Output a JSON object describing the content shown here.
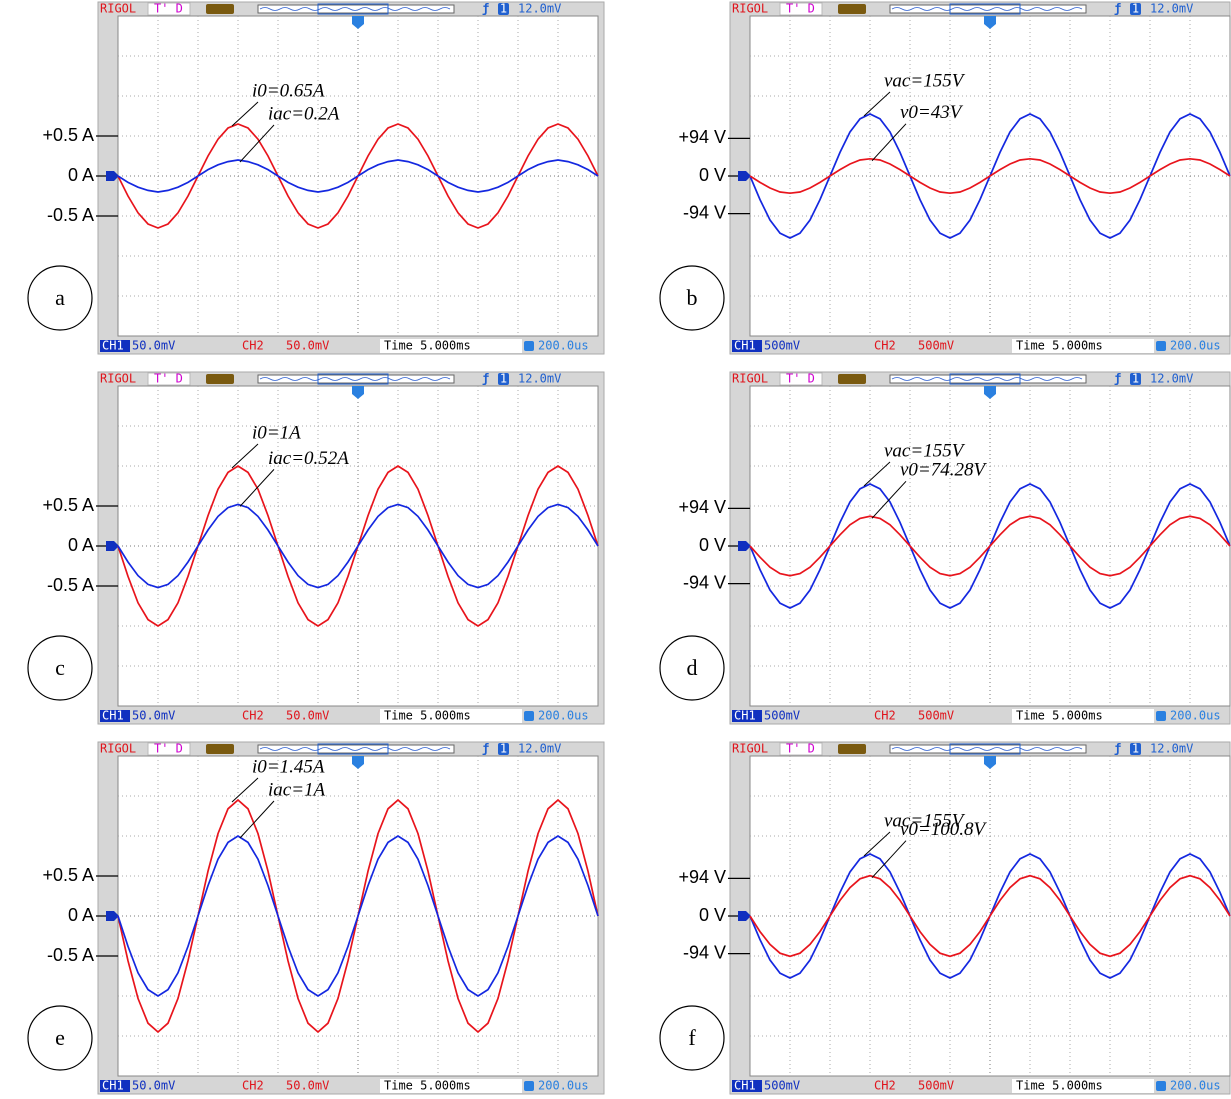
{
  "chart_data": [
    {
      "type": "line",
      "label": "a",
      "header": {
        "brand": "RIGOL",
        "mode": "T' D",
        "trigger_channel": "1",
        "trigger_level": "12.0mV"
      },
      "footer": {
        "ch1": "CH1",
        "ch1_scale": "50.0mV",
        "ch2": "CH2",
        "ch2_scale": "50.0mV",
        "time": "Time 5.000ms",
        "offset": "200.0us"
      },
      "annotations": [
        "i0=0.65A",
        "iac=0.2A"
      ],
      "ylim": [
        -2,
        2
      ],
      "yticks": [
        {
          "value": 0.5,
          "label": "+0.5 A"
        },
        {
          "value": 0,
          "label": "0 A"
        },
        {
          "value": -0.5,
          "label": "-0.5 A"
        }
      ],
      "series": [
        {
          "color": "#e8141c",
          "values": [
            0,
            -0.25,
            -0.46,
            -0.6,
            -0.65,
            -0.6,
            -0.46,
            -0.25,
            0,
            0.25,
            0.46,
            0.6,
            0.65,
            0.6,
            0.46,
            0.25,
            0,
            -0.25,
            -0.46,
            -0.6,
            -0.65,
            -0.6,
            -0.46,
            -0.25,
            0,
            0.25,
            0.46,
            0.6,
            0.65,
            0.6,
            0.46,
            0.25,
            0,
            -0.25,
            -0.46,
            -0.6,
            -0.65,
            -0.6,
            -0.46,
            -0.25,
            0,
            0.25,
            0.46,
            0.6,
            0.65,
            0.6,
            0.46,
            0.25,
            0
          ]
        },
        {
          "color": "#1428e0",
          "values": [
            0,
            -0.08,
            -0.14,
            -0.18,
            -0.2,
            -0.18,
            -0.14,
            -0.08,
            0,
            0.08,
            0.14,
            0.18,
            0.2,
            0.18,
            0.14,
            0.08,
            0,
            -0.08,
            -0.14,
            -0.18,
            -0.2,
            -0.18,
            -0.14,
            -0.08,
            0,
            0.08,
            0.14,
            0.18,
            0.2,
            0.18,
            0.14,
            0.08,
            0,
            -0.08,
            -0.14,
            -0.18,
            -0.2,
            -0.18,
            -0.14,
            -0.08,
            0,
            0.08,
            0.14,
            0.18,
            0.2,
            0.18,
            0.14,
            0.08,
            0
          ]
        }
      ]
    },
    {
      "type": "line",
      "label": "b",
      "header": {
        "brand": "RIGOL",
        "mode": "T' D",
        "trigger_channel": "1",
        "trigger_level": "12.0mV"
      },
      "footer": {
        "ch1": "CH1",
        "ch1_scale": "500mV",
        "ch2": "CH2",
        "ch2_scale": "500mV",
        "time": "Time 5.000ms",
        "offset": "200.0us"
      },
      "annotations": [
        "vac=155V",
        "v0=43V"
      ],
      "ylim": [
        -400,
        400
      ],
      "yticks": [
        {
          "value": 94,
          "label": "+94 V"
        },
        {
          "value": 0,
          "label": "0 V"
        },
        {
          "value": -94,
          "label": "-94 V"
        }
      ],
      "series": [
        {
          "color": "#1428e0",
          "values": [
            0,
            -59,
            -110,
            -143,
            -155,
            -143,
            -110,
            -59,
            0,
            59,
            110,
            143,
            155,
            143,
            110,
            59,
            0,
            -59,
            -110,
            -143,
            -155,
            -143,
            -110,
            -59,
            0,
            59,
            110,
            143,
            155,
            143,
            110,
            59,
            0,
            -59,
            -110,
            -143,
            -155,
            -143,
            -110,
            -59,
            0,
            59,
            110,
            143,
            155,
            143,
            110,
            59,
            0
          ]
        },
        {
          "color": "#e8141c",
          "values": [
            0,
            -16,
            -30,
            -40,
            -43,
            -40,
            -30,
            -16,
            0,
            16,
            30,
            40,
            43,
            40,
            30,
            16,
            0,
            -16,
            -30,
            -40,
            -43,
            -40,
            -30,
            -16,
            0,
            16,
            30,
            40,
            43,
            40,
            30,
            16,
            0,
            -16,
            -30,
            -40,
            -43,
            -40,
            -30,
            -16,
            0,
            16,
            30,
            40,
            43,
            40,
            30,
            16,
            0
          ]
        }
      ]
    },
    {
      "type": "line",
      "label": "c",
      "header": {
        "brand": "RIGOL",
        "mode": "T' D",
        "trigger_channel": "1",
        "trigger_level": "12.0mV"
      },
      "footer": {
        "ch1": "CH1",
        "ch1_scale": "50.0mV",
        "ch2": "CH2",
        "ch2_scale": "50.0mV",
        "time": "Time 5.000ms",
        "offset": "200.0us"
      },
      "annotations": [
        "i0=1A",
        "iac=0.52A"
      ],
      "ylim": [
        -2,
        2
      ],
      "yticks": [
        {
          "value": 0.5,
          "label": "+0.5 A"
        },
        {
          "value": 0,
          "label": "0 A"
        },
        {
          "value": -0.5,
          "label": "-0.5 A"
        }
      ],
      "series": [
        {
          "color": "#e8141c",
          "values": [
            0,
            -0.38,
            -0.71,
            -0.92,
            -1,
            -0.92,
            -0.71,
            -0.38,
            0,
            0.38,
            0.71,
            0.92,
            1,
            0.92,
            0.71,
            0.38,
            0,
            -0.38,
            -0.71,
            -0.92,
            -1,
            -0.92,
            -0.71,
            -0.38,
            0,
            0.38,
            0.71,
            0.92,
            1,
            0.92,
            0.71,
            0.38,
            0,
            -0.38,
            -0.71,
            -0.92,
            -1,
            -0.92,
            -0.71,
            -0.38,
            0,
            0.38,
            0.71,
            0.92,
            1,
            0.92,
            0.71,
            0.38,
            0
          ]
        },
        {
          "color": "#1428e0",
          "values": [
            0,
            -0.2,
            -0.37,
            -0.48,
            -0.52,
            -0.48,
            -0.37,
            -0.2,
            0,
            0.2,
            0.37,
            0.48,
            0.52,
            0.48,
            0.37,
            0.2,
            0,
            -0.2,
            -0.37,
            -0.48,
            -0.52,
            -0.48,
            -0.37,
            -0.2,
            0,
            0.2,
            0.37,
            0.48,
            0.52,
            0.48,
            0.37,
            0.2,
            0,
            -0.2,
            -0.37,
            -0.48,
            -0.52,
            -0.48,
            -0.37,
            -0.2,
            0,
            0.2,
            0.37,
            0.48,
            0.52,
            0.48,
            0.37,
            0.2,
            0
          ]
        }
      ]
    },
    {
      "type": "line",
      "label": "d",
      "header": {
        "brand": "RIGOL",
        "mode": "T' D",
        "trigger_channel": "1",
        "trigger_level": "12.0mV"
      },
      "footer": {
        "ch1": "CH1",
        "ch1_scale": "500mV",
        "ch2": "CH2",
        "ch2_scale": "500mV",
        "time": "Time 5.000ms",
        "offset": "200.0us"
      },
      "annotations": [
        "vac=155V",
        "v0=74.28V"
      ],
      "ylim": [
        -400,
        400
      ],
      "yticks": [
        {
          "value": 94,
          "label": "+94 V"
        },
        {
          "value": 0,
          "label": "0 V"
        },
        {
          "value": -94,
          "label": "-94 V"
        }
      ],
      "series": [
        {
          "color": "#1428e0",
          "values": [
            0,
            -59,
            -110,
            -143,
            -155,
            -143,
            -110,
            -59,
            0,
            59,
            110,
            143,
            155,
            143,
            110,
            59,
            0,
            -59,
            -110,
            -143,
            -155,
            -143,
            -110,
            -59,
            0,
            59,
            110,
            143,
            155,
            143,
            110,
            59,
            0,
            -59,
            -110,
            -143,
            -155,
            -143,
            -110,
            -59,
            0,
            59,
            110,
            143,
            155,
            143,
            110,
            59,
            0
          ]
        },
        {
          "color": "#e8141c",
          "values": [
            0,
            -28,
            -53,
            -69,
            -74.28,
            -69,
            -53,
            -28,
            0,
            28,
            53,
            69,
            74.28,
            69,
            53,
            28,
            0,
            -28,
            -53,
            -69,
            -74.28,
            -69,
            -53,
            -28,
            0,
            28,
            53,
            69,
            74.28,
            69,
            53,
            28,
            0,
            -28,
            -53,
            -69,
            -74.28,
            -69,
            -53,
            -28,
            0,
            28,
            53,
            69,
            74.28,
            69,
            53,
            28,
            0
          ]
        }
      ]
    },
    {
      "type": "line",
      "label": "e",
      "header": {
        "brand": "RIGOL",
        "mode": "T' D",
        "trigger_channel": "1",
        "trigger_level": "12.0mV"
      },
      "footer": {
        "ch1": "CH1",
        "ch1_scale": "50.0mV",
        "ch2": "CH2",
        "ch2_scale": "50.0mV",
        "time": "Time 5.000ms",
        "offset": "200.0us"
      },
      "annotations": [
        "i0=1.45A",
        "iac=1A"
      ],
      "ylim": [
        -2,
        2
      ],
      "yticks": [
        {
          "value": 0.5,
          "label": "+0.5 A"
        },
        {
          "value": 0,
          "label": "0 A"
        },
        {
          "value": -0.5,
          "label": "-0.5 A"
        }
      ],
      "series": [
        {
          "color": "#e8141c",
          "values": [
            0,
            -0.56,
            -1.03,
            -1.34,
            -1.45,
            -1.34,
            -1.03,
            -0.56,
            0,
            0.56,
            1.03,
            1.34,
            1.45,
            1.34,
            1.03,
            0.56,
            0,
            -0.56,
            -1.03,
            -1.34,
            -1.45,
            -1.34,
            -1.03,
            -0.56,
            0,
            0.56,
            1.03,
            1.34,
            1.45,
            1.34,
            1.03,
            0.56,
            0,
            -0.56,
            -1.03,
            -1.34,
            -1.45,
            -1.34,
            -1.03,
            -0.56,
            0,
            0.56,
            1.03,
            1.34,
            1.45,
            1.34,
            1.03,
            0.56,
            0
          ]
        },
        {
          "color": "#1428e0",
          "values": [
            0,
            -0.38,
            -0.71,
            -0.92,
            -1,
            -0.92,
            -0.71,
            -0.38,
            0,
            0.38,
            0.71,
            0.92,
            1,
            0.92,
            0.71,
            0.38,
            0,
            -0.38,
            -0.71,
            -0.92,
            -1,
            -0.92,
            -0.71,
            -0.38,
            0,
            0.38,
            0.71,
            0.92,
            1,
            0.92,
            0.71,
            0.38,
            0,
            -0.38,
            -0.71,
            -0.92,
            -1,
            -0.92,
            -0.71,
            -0.38,
            0,
            0.38,
            0.71,
            0.92,
            1,
            0.92,
            0.71,
            0.38,
            0
          ]
        }
      ]
    },
    {
      "type": "line",
      "label": "f",
      "header": {
        "brand": "RIGOL",
        "mode": "T' D",
        "trigger_channel": "1",
        "trigger_level": "12.0mV"
      },
      "footer": {
        "ch1": "CH1",
        "ch1_scale": "500mV",
        "ch2": "CH2",
        "ch2_scale": "500mV",
        "time": "Time 5.000ms",
        "offset": "200.0us"
      },
      "annotations": [
        "vac=155V",
        "v0=100.8V"
      ],
      "ylim": [
        -400,
        400
      ],
      "yticks": [
        {
          "value": 94,
          "label": "+94 V"
        },
        {
          "value": 0,
          "label": "0 V"
        },
        {
          "value": -94,
          "label": "-94 V"
        }
      ],
      "series": [
        {
          "color": "#1428e0",
          "values": [
            0,
            -59,
            -110,
            -143,
            -155,
            -143,
            -110,
            -59,
            0,
            59,
            110,
            143,
            155,
            143,
            110,
            59,
            0,
            -59,
            -110,
            -143,
            -155,
            -143,
            -110,
            -59,
            0,
            59,
            110,
            143,
            155,
            143,
            110,
            59,
            0,
            -59,
            -110,
            -143,
            -155,
            -143,
            -110,
            -59,
            0,
            59,
            110,
            143,
            155,
            143,
            110,
            59,
            0
          ]
        },
        {
          "color": "#e8141c",
          "values": [
            0,
            -39,
            -71,
            -93,
            -100.8,
            -93,
            -71,
            -39,
            0,
            39,
            71,
            93,
            100.8,
            93,
            71,
            39,
            0,
            -39,
            -71,
            -93,
            -100.8,
            -93,
            -71,
            -39,
            0,
            39,
            71,
            93,
            100.8,
            93,
            71,
            39,
            0,
            -39,
            -71,
            -93,
            -100.8,
            -93,
            -71,
            -39,
            0,
            39,
            71,
            93,
            100.8,
            93,
            71,
            39,
            0
          ]
        }
      ]
    }
  ]
}
